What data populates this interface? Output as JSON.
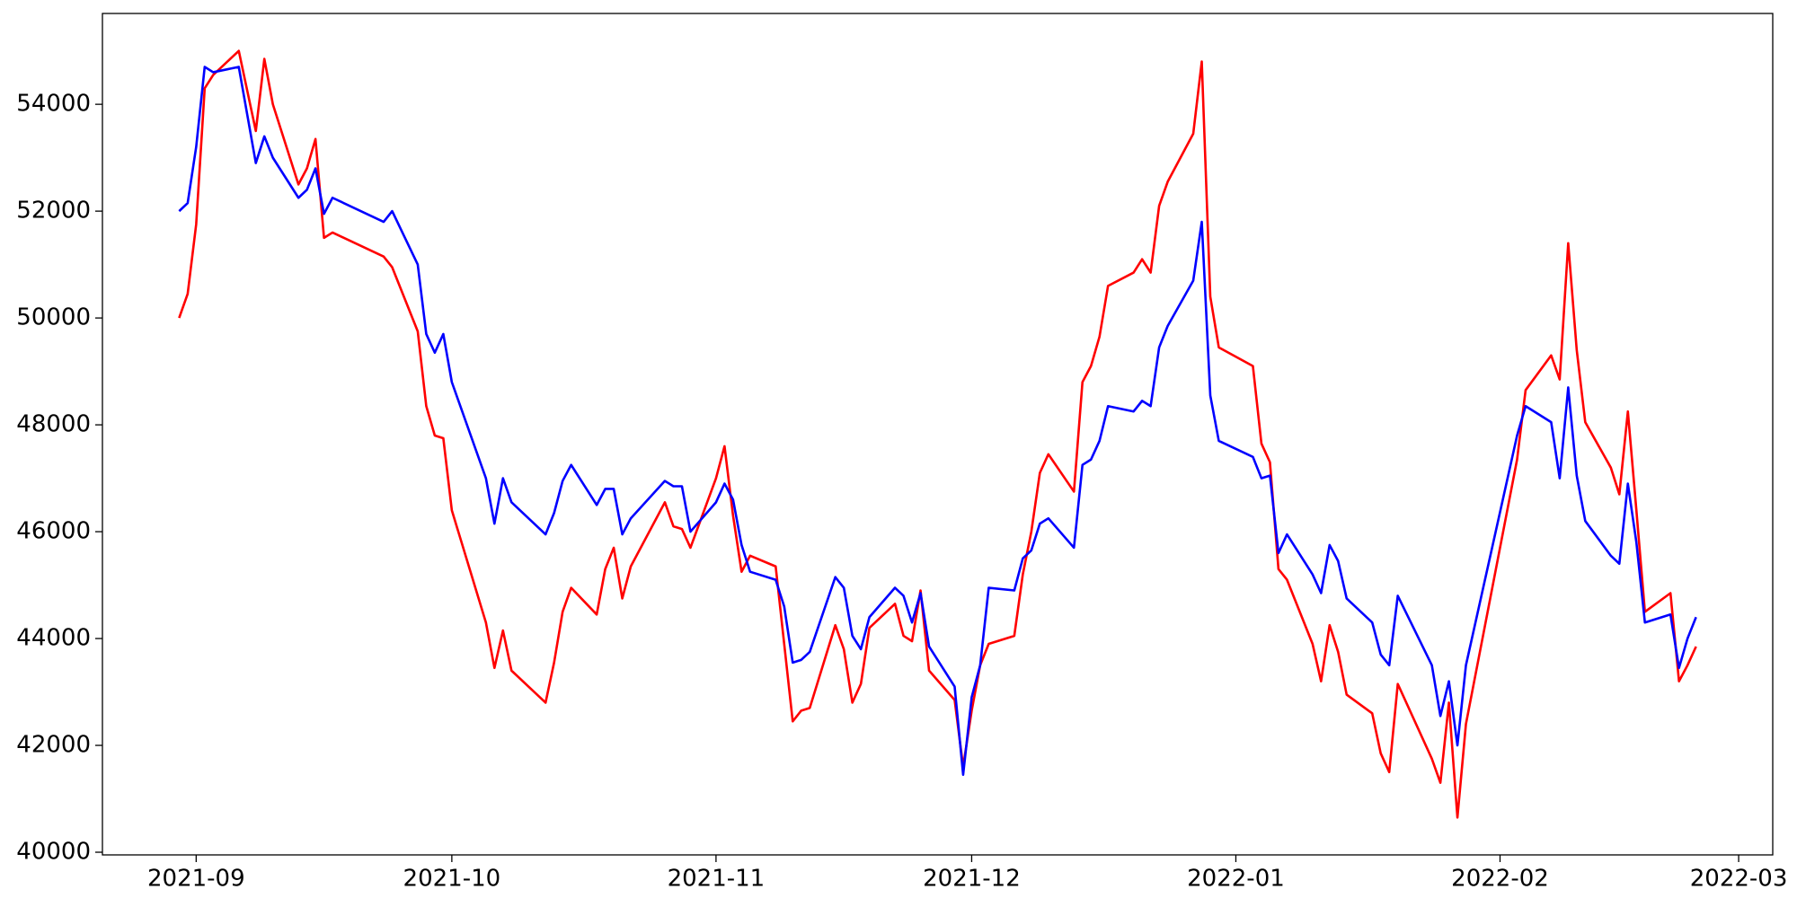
{
  "chart_data": {
    "type": "line",
    "x": [
      "2021-08-30",
      "2021-08-31",
      "2021-09-01",
      "2021-09-02",
      "2021-09-03",
      "2021-09-06",
      "2021-09-08",
      "2021-09-09",
      "2021-09-10",
      "2021-09-13",
      "2021-09-14",
      "2021-09-15",
      "2021-09-16",
      "2021-09-17",
      "2021-09-23",
      "2021-09-24",
      "2021-09-27",
      "2021-09-28",
      "2021-09-29",
      "2021-09-30",
      "2021-10-01",
      "2021-10-05",
      "2021-10-06",
      "2021-10-07",
      "2021-10-08",
      "2021-10-12",
      "2021-10-13",
      "2021-10-14",
      "2021-10-15",
      "2021-10-18",
      "2021-10-19",
      "2021-10-20",
      "2021-10-21",
      "2021-10-22",
      "2021-10-26",
      "2021-10-27",
      "2021-10-28",
      "2021-10-29",
      "2021-11-01",
      "2021-11-02",
      "2021-11-03",
      "2021-11-04",
      "2021-11-05",
      "2021-11-08",
      "2021-11-09",
      "2021-11-10",
      "2021-11-11",
      "2021-11-12",
      "2021-11-15",
      "2021-11-16",
      "2021-11-17",
      "2021-11-18",
      "2021-11-19",
      "2021-11-22",
      "2021-11-23",
      "2021-11-24",
      "2021-11-25",
      "2021-11-26",
      "2021-11-29",
      "2021-11-30",
      "2021-12-01",
      "2021-12-02",
      "2021-12-03",
      "2021-12-06",
      "2021-12-07",
      "2021-12-08",
      "2021-12-09",
      "2021-12-10",
      "2021-12-13",
      "2021-12-14",
      "2021-12-15",
      "2021-12-16",
      "2021-12-17",
      "2021-12-20",
      "2021-12-21",
      "2021-12-22",
      "2021-12-23",
      "2021-12-24",
      "2021-12-27",
      "2021-12-28",
      "2021-12-29",
      "2021-12-30",
      "2022-01-03",
      "2022-01-04",
      "2022-01-05",
      "2022-01-06",
      "2022-01-07",
      "2022-01-10",
      "2022-01-11",
      "2022-01-12",
      "2022-01-13",
      "2022-01-14",
      "2022-01-17",
      "2022-01-18",
      "2022-01-19",
      "2022-01-20",
      "2022-01-24",
      "2022-01-25",
      "2022-01-26",
      "2022-01-27",
      "2022-01-28",
      "2022-02-03",
      "2022-02-04",
      "2022-02-07",
      "2022-02-08",
      "2022-02-09",
      "2022-02-10",
      "2022-02-11",
      "2022-02-14",
      "2022-02-15",
      "2022-02-16",
      "2022-02-17",
      "2022-02-18",
      "2022-02-21",
      "2022-02-22",
      "2022-02-23",
      "2022-02-24"
    ],
    "series": [
      {
        "color": "#ff0000",
        "values": [
          50000,
          50450,
          51750,
          54300,
          54550,
          55000,
          53500,
          54850,
          54000,
          52500,
          52800,
          53350,
          51500,
          51600,
          51150,
          50950,
          49750,
          48350,
          47800,
          47750,
          46400,
          44300,
          43450,
          44150,
          43400,
          42800,
          43550,
          44500,
          44950,
          44450,
          45300,
          45700,
          44750,
          45350,
          46550,
          46100,
          46050,
          45700,
          47000,
          47600,
          46300,
          45250,
          45550,
          45350,
          43900,
          42450,
          42650,
          42700,
          44250,
          43800,
          42800,
          43150,
          44200,
          44650,
          44050,
          43950,
          44900,
          43400,
          42850,
          41600,
          42650,
          43500,
          43900,
          44050,
          45200,
          46000,
          47100,
          47450,
          46750,
          48800,
          49100,
          49650,
          50600,
          50850,
          51100,
          50850,
          52100,
          52550,
          53450,
          54800,
          50400,
          49450,
          49100,
          47650,
          47300,
          45300,
          45100,
          43900,
          43200,
          44250,
          43750,
          42950,
          42600,
          41850,
          41500,
          43150,
          41750,
          41300,
          42800,
          40650,
          42400,
          47350,
          48650,
          49300,
          48850,
          51400,
          49400,
          48050,
          47200,
          46700,
          48250,
          46400,
          44500,
          44850,
          43200,
          43500,
          43850
        ]
      },
      {
        "color": "#0000ff",
        "values": [
          52000,
          52150,
          53200,
          54700,
          54600,
          54700,
          52900,
          53400,
          53000,
          52250,
          52400,
          52800,
          51950,
          52250,
          51800,
          52000,
          51000,
          49700,
          49350,
          49700,
          48800,
          47000,
          46150,
          47000,
          46550,
          45950,
          46350,
          46950,
          47250,
          46500,
          46800,
          46800,
          45950,
          46250,
          46950,
          46850,
          46850,
          46000,
          46550,
          46900,
          46600,
          45750,
          45250,
          45100,
          44600,
          43550,
          43600,
          43750,
          45150,
          44950,
          44050,
          43800,
          44400,
          44950,
          44800,
          44300,
          44850,
          43850,
          43100,
          41450,
          42900,
          43500,
          44950,
          44900,
          45500,
          45650,
          46150,
          46250,
          45700,
          47250,
          47350,
          47700,
          48350,
          48250,
          48450,
          48350,
          49450,
          49850,
          50700,
          51800,
          48550,
          47700,
          47400,
          47000,
          47050,
          45600,
          45950,
          45200,
          44850,
          45750,
          45450,
          44750,
          44300,
          43700,
          43500,
          44800,
          43500,
          42550,
          43200,
          42000,
          43500,
          47800,
          48350,
          48050,
          47000,
          48700,
          47050,
          46200,
          45550,
          45400,
          46900,
          45800,
          44300,
          44450,
          43450,
          44000,
          44400
        ]
      }
    ],
    "xlim": [
      "2021-08-21",
      "2022-03-05"
    ],
    "xticks": [
      {
        "value": "2021-09-01",
        "label": "2021-09"
      },
      {
        "value": "2021-10-01",
        "label": "2021-10"
      },
      {
        "value": "2021-11-01",
        "label": "2021-11"
      },
      {
        "value": "2021-12-01",
        "label": "2021-12"
      },
      {
        "value": "2022-01-01",
        "label": "2022-01"
      },
      {
        "value": "2022-02-01",
        "label": "2022-02"
      },
      {
        "value": "2022-03-01",
        "label": "2022-03"
      }
    ],
    "ylim": [
      39950,
      55700
    ],
    "yticks": [
      40000,
      42000,
      44000,
      46000,
      48000,
      50000,
      52000,
      54000
    ]
  }
}
